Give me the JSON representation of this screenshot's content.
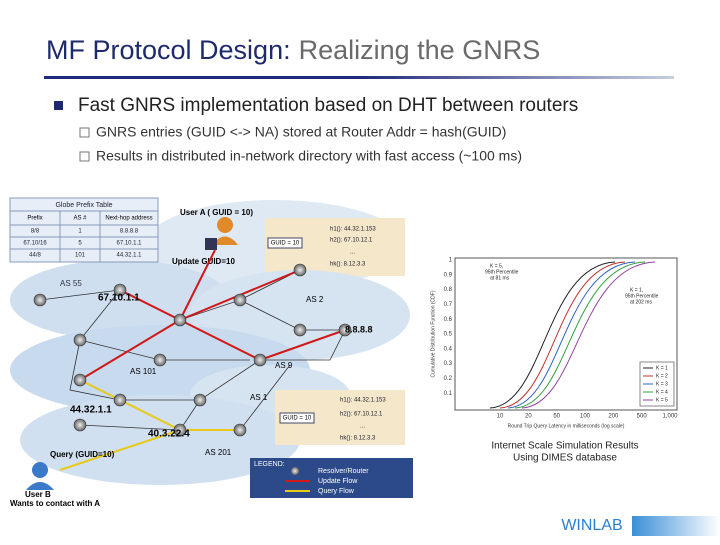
{
  "header": {
    "title_main": "MF Protocol Design:",
    "title_sub": "Realizing the GNRS"
  },
  "bullets": {
    "main": "Fast GNRS implementation based on DHT between routers",
    "sub": [
      "GNRS entries (GUID <-> NA) stored at Router Addr = hash(GUID)",
      "Results in distributed in-network directory with fast access (~100 ms)"
    ]
  },
  "diagram": {
    "prefix_table": {
      "title": "Globe Prefix Table",
      "columns": [
        "Prefix",
        "AS #",
        "Next-hop address"
      ],
      "rows": [
        [
          "8/8",
          "1",
          "8.8.8.8"
        ],
        [
          "67.10/16",
          "5",
          "67.10.1.1"
        ],
        [
          "44/8",
          "101",
          "44.32.1.1"
        ]
      ]
    },
    "user_a": "User A ( GUID = 10)",
    "update": "Update GUID=10",
    "guid_box": "GUID = 10",
    "hash_top": [
      "h1(): 44.32.1.153",
      "h2(): 67.10.12.1",
      "...",
      "hk(): 8.12.3.3"
    ],
    "hash_bottom": [
      "h1(): 44.32.1.153",
      "h2(): 67.10.12.1",
      "...",
      "hk(): 8.12.3.3"
    ],
    "nodes": [
      "AS 55",
      "67.10.1.1",
      "AS 2",
      "8.8.8.8",
      "AS 101",
      "44.32.1.1",
      "AS 9",
      "AS 1",
      "40.3.22.4",
      "AS 201"
    ],
    "query": "Query (GUID=10)",
    "user_b": "User B",
    "user_b_note": "Wants to contact with A",
    "legend": {
      "title": "LEGEND:",
      "items": [
        "Resolver/Router",
        "Update Flow",
        "Query Flow"
      ]
    }
  },
  "plot": {
    "ylabel": "Cumulative Distribution Function (CDF)",
    "xlabel": "Round Trip Query Latency in milliseconds (log scale)",
    "yticks": [
      "0.1",
      "0.2",
      "0.3",
      "0.4",
      "0.5",
      "0.6",
      "0.7",
      "0.8",
      "0.9",
      "1"
    ],
    "xticks": [
      "10",
      "20",
      "50",
      "100",
      "200",
      "500",
      "1,000"
    ],
    "note_k5": [
      "K = 5,",
      "95th Percentile",
      "at 81 ms"
    ],
    "note_k1": [
      "K = 1,",
      "95th Percentile",
      "at 202 ms"
    ],
    "legend": [
      "K = 1",
      "K = 2",
      "K = 3",
      "K = 4",
      "K = 5"
    ],
    "caption": [
      "Internet Scale Simulation Results",
      "Using DIMES database"
    ]
  },
  "footer": {
    "logo": "WINLAB"
  }
}
